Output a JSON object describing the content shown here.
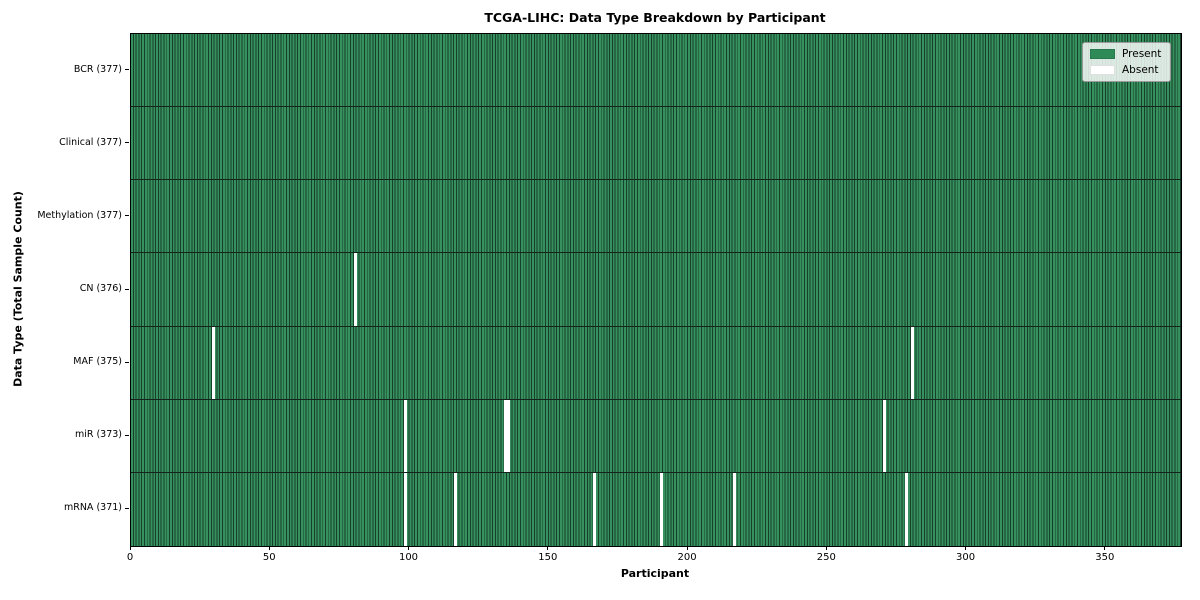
{
  "chart_data": {
    "type": "heatmap",
    "title": "TCGA-LIHC: Data Type Breakdown by Participant",
    "xlabel": "Participant",
    "ylabel": "Data Type (Total Sample Count)",
    "x_range": [
      0,
      377
    ],
    "x_ticks": [
      0,
      50,
      100,
      150,
      200,
      250,
      300,
      350
    ],
    "grid": false,
    "legend_position": "upper right",
    "rows": [
      {
        "label": "BCR (377)",
        "data_type": "BCR",
        "total": 377,
        "absent_participants": []
      },
      {
        "label": "Clinical (377)",
        "data_type": "Clinical",
        "total": 377,
        "absent_participants": []
      },
      {
        "label": "Methylation (377)",
        "data_type": "Methylation",
        "total": 377,
        "absent_participants": []
      },
      {
        "label": "CN (376)",
        "data_type": "CN",
        "total": 376,
        "absent_participants": [
          80
        ]
      },
      {
        "label": "MAF (375)",
        "data_type": "MAF",
        "total": 375,
        "absent_participants": [
          29,
          280
        ]
      },
      {
        "label": "miR (373)",
        "data_type": "miR",
        "total": 373,
        "absent_participants": [
          98,
          134,
          135,
          270
        ]
      },
      {
        "label": "mRNA (371)",
        "data_type": "mRNA",
        "total": 371,
        "absent_participants": [
          98,
          116,
          166,
          190,
          216,
          278
        ]
      }
    ],
    "legend": [
      {
        "label": "Present",
        "color": "#2e8b57"
      },
      {
        "label": "Absent",
        "color": "#ffffff"
      }
    ],
    "colors": {
      "present_fill": "#36915f",
      "cell_edge": "#17402a",
      "absent_fill": "#ffffff",
      "row_divider": "#15241b",
      "spine": "#000000"
    }
  }
}
